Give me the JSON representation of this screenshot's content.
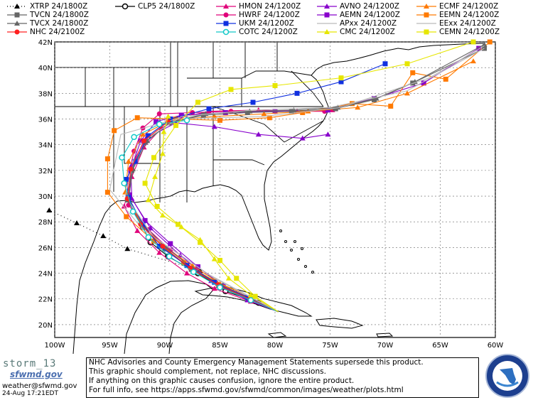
{
  "legend": [
    {
      "label": "XTRP 24/1800Z",
      "color": "#000000",
      "marker": "triangle",
      "dash": "dotted"
    },
    {
      "label": "CLP5 24/1800Z",
      "color": "#000000",
      "marker": "ring",
      "dash": "solid"
    },
    {
      "label": "HMON 24/1200Z",
      "color": "#e0007a",
      "marker": "triangle",
      "dash": "solid"
    },
    {
      "label": "AVNO 24/1200Z",
      "color": "#8800cc",
      "marker": "triangle",
      "dash": "solid"
    },
    {
      "label": "ECMF 24/1200Z",
      "color": "#ff7a00",
      "marker": "triangle",
      "dash": "solid"
    },
    {
      "label": "TVCN 24/1800Z",
      "color": "#666666",
      "marker": "square",
      "dash": "solid"
    },
    {
      "label": "HWRF 24/1200Z",
      "color": "#e0007a",
      "marker": "circle",
      "dash": "solid"
    },
    {
      "label": "AEMN 24/1200Z",
      "color": "#8800cc",
      "marker": "square",
      "dash": "solid"
    },
    {
      "label": "EEMN 24/1200Z",
      "color": "#ff7a00",
      "marker": "square",
      "dash": "solid"
    },
    {
      "label": "TVCX 24/1800Z",
      "color": "#666666",
      "marker": "triangle",
      "dash": "solid"
    },
    {
      "label": "UKM 24/1200Z",
      "color": "#1030e0",
      "marker": "square",
      "dash": "solid"
    },
    {
      "label": "APxx 24/1200Z",
      "color": "#bbbbbb",
      "marker": "none",
      "dash": "solid"
    },
    {
      "label": "EExx 24/1200Z",
      "color": "#bbbbbb",
      "marker": "none",
      "dash": "solid"
    },
    {
      "label": "NHC 24/2100Z",
      "color": "#ff2020",
      "marker": "circle",
      "dash": "solid"
    },
    {
      "label": "COTC 24/1200Z",
      "color": "#10c8c8",
      "marker": "ring",
      "dash": "solid"
    },
    {
      "label": "CMC 24/1200Z",
      "color": "#e6e600",
      "marker": "triangle",
      "dash": "solid"
    },
    {
      "label": "CEMN 24/1200Z",
      "color": "#e6e600",
      "marker": "square",
      "dash": "solid"
    }
  ],
  "map": {
    "lat_labels": [
      "42N",
      "40N",
      "38N",
      "36N",
      "34N",
      "32N",
      "30N",
      "28N",
      "26N",
      "24N",
      "22N",
      "20N"
    ],
    "lon_labels": [
      "100W",
      "95W",
      "90W",
      "85W",
      "80W",
      "75W",
      "70W",
      "65W",
      "60W"
    ],
    "lon_range": [
      -100,
      -60
    ],
    "lat_range": [
      19,
      42
    ]
  },
  "tracks": [
    {
      "model": "XTRP",
      "color": "#000000",
      "marker": "triangle",
      "dash": "dotted",
      "points": [
        [
          -79.7,
          21.0
        ],
        [
          -82.2,
          22.0
        ],
        [
          -84.7,
          23.1
        ],
        [
          -86.8,
          24.2
        ],
        [
          -93.4,
          25.9
        ],
        [
          -95.6,
          26.9
        ],
        [
          -98.0,
          27.9
        ],
        [
          -100.5,
          28.9
        ]
      ]
    },
    {
      "model": "CLP5",
      "color": "#000000",
      "marker": "ring",
      "dash": "solid",
      "points": [
        [
          -79.7,
          21.0
        ],
        [
          -81.5,
          21.7
        ],
        [
          -84.5,
          22.6
        ],
        [
          -87.0,
          24.0
        ],
        [
          -89.7,
          25.3
        ],
        [
          -91.3,
          26.4
        ],
        [
          -92.0,
          27.6
        ]
      ]
    },
    {
      "model": "HMON",
      "color": "#e0007a",
      "marker": "triangle",
      "dash": "solid",
      "points": [
        [
          -79.7,
          21.0
        ],
        [
          -82.2,
          21.8
        ],
        [
          -85.5,
          22.8
        ],
        [
          -88.0,
          24.0
        ],
        [
          -90.5,
          25.6
        ],
        [
          -92.5,
          27.3
        ],
        [
          -93.7,
          29.2
        ],
        [
          -93.0,
          31.5
        ],
        [
          -91.9,
          33.8
        ],
        [
          -90.3,
          35.3
        ],
        [
          -88.6,
          36.1
        ],
        [
          -86.0,
          36.6
        ],
        [
          -81.5,
          36.7
        ],
        [
          -78.0,
          36.6
        ],
        [
          -74.8,
          36.7
        ]
      ]
    },
    {
      "model": "HWRF",
      "color": "#e0007a",
      "marker": "circle",
      "dash": "solid",
      "points": [
        [
          -79.7,
          21.0
        ],
        [
          -82.0,
          21.9
        ],
        [
          -84.8,
          22.9
        ],
        [
          -87.3,
          24.3
        ],
        [
          -89.5,
          25.8
        ],
        [
          -91.5,
          27.4
        ],
        [
          -93.3,
          29.3
        ],
        [
          -93.4,
          31.3
        ],
        [
          -92.8,
          33.5
        ],
        [
          -92.0,
          35.3
        ],
        [
          -90.5,
          36.4
        ],
        [
          -87.5,
          36.5
        ],
        [
          -84.0,
          36.6
        ],
        [
          -80.0,
          36.6
        ],
        [
          -75.5,
          36.6
        ]
      ]
    },
    {
      "model": "AVNO",
      "color": "#8800cc",
      "marker": "triangle",
      "dash": "solid",
      "points": [
        [
          -79.7,
          21.0
        ],
        [
          -82.5,
          21.9
        ],
        [
          -85.8,
          23.4
        ],
        [
          -88.6,
          25.4
        ],
        [
          -91.3,
          27.5
        ],
        [
          -93.0,
          29.8
        ],
        [
          -93.1,
          32.3
        ],
        [
          -91.7,
          34.5
        ],
        [
          -89.0,
          35.7
        ],
        [
          -85.5,
          35.4
        ],
        [
          -81.5,
          34.8
        ],
        [
          -77.5,
          34.5
        ],
        [
          -75.2,
          34.8
        ]
      ]
    },
    {
      "model": "AEMN",
      "color": "#8800cc",
      "marker": "square",
      "dash": "solid",
      "points": [
        [
          -79.7,
          21.0
        ],
        [
          -82.0,
          22.0
        ],
        [
          -84.7,
          23.0
        ],
        [
          -87.0,
          24.5
        ],
        [
          -89.5,
          26.3
        ],
        [
          -91.8,
          28.1
        ],
        [
          -93.2,
          30.1
        ],
        [
          -93.1,
          32.0
        ],
        [
          -92.2,
          34.3
        ],
        [
          -90.8,
          35.8
        ],
        [
          -88.5,
          36.3
        ],
        [
          -84.5,
          36.5
        ],
        [
          -80.0,
          36.6
        ],
        [
          -75.2,
          36.7
        ],
        [
          -71.0,
          37.6
        ],
        [
          -66.5,
          38.8
        ],
        [
          -61.5,
          41.5
        ]
      ]
    },
    {
      "model": "ECMF",
      "color": "#ff7a00",
      "marker": "triangle",
      "dash": "solid",
      "points": [
        [
          -79.7,
          21.0
        ],
        [
          -82.3,
          22.2
        ],
        [
          -85.0,
          23.2
        ],
        [
          -87.5,
          24.6
        ],
        [
          -90.0,
          26.0
        ],
        [
          -92.2,
          28.0
        ],
        [
          -93.6,
          30.3
        ],
        [
          -93.3,
          32.7
        ],
        [
          -92.0,
          34.8
        ],
        [
          -89.5,
          35.9
        ],
        [
          -85.5,
          36.2
        ],
        [
          -81.0,
          36.4
        ],
        [
          -77.0,
          36.6
        ],
        [
          -72.5,
          36.9
        ],
        [
          -68.0,
          38.0
        ],
        [
          -62.0,
          40.5
        ]
      ]
    },
    {
      "model": "EEMN",
      "color": "#ff7a00",
      "marker": "square",
      "dash": "solid",
      "points": [
        [
          -79.7,
          21.0
        ],
        [
          -82.5,
          22.1
        ],
        [
          -85.5,
          23.4
        ],
        [
          -88.3,
          24.8
        ],
        [
          -91.0,
          26.5
        ],
        [
          -93.5,
          28.4
        ],
        [
          -95.2,
          30.3
        ],
        [
          -95.2,
          32.9
        ],
        [
          -94.6,
          35.1
        ],
        [
          -92.5,
          36.1
        ],
        [
          -89.0,
          36.0
        ],
        [
          -85.0,
          35.9
        ],
        [
          -80.5,
          36.1
        ],
        [
          -77.5,
          36.5
        ],
        [
          -73.0,
          37.2
        ],
        [
          -69.5,
          37.0
        ],
        [
          -67.5,
          39.6
        ],
        [
          -64.5,
          39.1
        ],
        [
          -60.5,
          42.0
        ]
      ]
    },
    {
      "model": "TVCN",
      "color": "#666666",
      "marker": "square",
      "dash": "solid",
      "points": [
        [
          -79.7,
          21.0
        ],
        [
          -82.2,
          21.9
        ],
        [
          -85.0,
          23.0
        ],
        [
          -87.6,
          24.3
        ],
        [
          -90.0,
          25.9
        ],
        [
          -92.0,
          27.6
        ],
        [
          -93.4,
          29.7
        ],
        [
          -93.0,
          32.0
        ],
        [
          -91.8,
          34.2
        ],
        [
          -89.6,
          35.7
        ],
        [
          -86.5,
          36.3
        ],
        [
          -82.5,
          36.5
        ],
        [
          -78.5,
          36.6
        ],
        [
          -74.5,
          36.8
        ],
        [
          -71.0,
          37.5
        ],
        [
          -67.5,
          38.8
        ],
        [
          -61.0,
          41.5
        ]
      ]
    },
    {
      "model": "TVCX",
      "color": "#666666",
      "marker": "triangle",
      "dash": "solid",
      "points": [
        [
          -79.7,
          21.0
        ],
        [
          -82.0,
          22.0
        ],
        [
          -84.8,
          23.0
        ],
        [
          -87.5,
          24.4
        ],
        [
          -89.9,
          26.0
        ],
        [
          -91.9,
          27.7
        ],
        [
          -93.3,
          29.8
        ],
        [
          -92.9,
          32.1
        ],
        [
          -91.6,
          34.3
        ],
        [
          -89.4,
          35.8
        ],
        [
          -86.3,
          36.4
        ],
        [
          -82.3,
          36.6
        ],
        [
          -78.3,
          36.7
        ],
        [
          -74.3,
          36.9
        ],
        [
          -70.8,
          37.6
        ],
        [
          -67.3,
          38.9
        ],
        [
          -61.0,
          41.8
        ]
      ]
    },
    {
      "model": "UKM",
      "color": "#1030e0",
      "marker": "square",
      "dash": "solid",
      "points": [
        [
          -79.7,
          21.0
        ],
        [
          -82.5,
          22.1
        ],
        [
          -85.5,
          23.3
        ],
        [
          -88.0,
          24.6
        ],
        [
          -90.5,
          26.1
        ],
        [
          -92.0,
          27.8
        ],
        [
          -93.3,
          29.9
        ],
        [
          -93.5,
          31.3
        ],
        [
          -92.7,
          32.7
        ],
        [
          -91.5,
          34.7
        ],
        [
          -89.5,
          36.0
        ],
        [
          -86.0,
          36.8
        ],
        [
          -82.0,
          37.3
        ],
        [
          -78.0,
          38.0
        ],
        [
          -74.0,
          38.9
        ],
        [
          -70.0,
          40.3
        ]
      ]
    },
    {
      "model": "APxx",
      "color": "#bbbbbb",
      "marker": "none",
      "dash": "solid",
      "points": [
        [
          -79.7,
          21.0
        ],
        [
          -85.5,
          23.6
        ],
        [
          -91.0,
          26.8
        ],
        [
          -93.6,
          30.0
        ],
        [
          -92.5,
          34.0
        ],
        [
          -88.5,
          36.2
        ],
        [
          -82.0,
          36.7
        ],
        [
          -75.0,
          36.9
        ],
        [
          -68.0,
          38.2
        ],
        [
          -61.0,
          41.5
        ]
      ]
    },
    {
      "model": "EExx",
      "color": "#bbbbbb",
      "marker": "none",
      "dash": "solid",
      "points": [
        [
          -79.7,
          21.0
        ],
        [
          -86.0,
          23.9
        ],
        [
          -92.0,
          27.4
        ],
        [
          -95.0,
          30.5
        ],
        [
          -94.0,
          34.8
        ],
        [
          -89.0,
          36.0
        ],
        [
          -81.0,
          36.2
        ],
        [
          -74.0,
          36.9
        ],
        [
          -66.0,
          39.2
        ],
        [
          -61.0,
          41.7
        ]
      ]
    },
    {
      "model": "NHC",
      "color": "#ff2020",
      "marker": "circle",
      "dash": "solid",
      "points": [
        [
          -79.7,
          21.0
        ],
        [
          -82.3,
          22.0
        ],
        [
          -85.2,
          23.1
        ],
        [
          -87.7,
          24.4
        ],
        [
          -90.2,
          26.1
        ],
        [
          -92.2,
          27.8
        ],
        [
          -93.4,
          29.8
        ],
        [
          -93.1,
          32.1
        ],
        [
          -91.9,
          34.3
        ],
        [
          -89.7,
          35.8
        ]
      ]
    },
    {
      "model": "COTC",
      "color": "#10c8c8",
      "marker": "ring",
      "dash": "solid",
      "points": [
        [
          -79.7,
          21.0
        ],
        [
          -82.2,
          21.9
        ],
        [
          -85.0,
          22.9
        ],
        [
          -87.4,
          24.1
        ],
        [
          -89.6,
          25.3
        ],
        [
          -91.5,
          26.8
        ],
        [
          -92.9,
          28.8
        ],
        [
          -93.7,
          31.0
        ],
        [
          -93.9,
          33.0
        ],
        [
          -92.8,
          34.6
        ],
        [
          -90.5,
          35.6
        ],
        [
          -88.0,
          35.9
        ]
      ]
    },
    {
      "model": "CMC",
      "color": "#e6e600",
      "marker": "triangle",
      "dash": "solid",
      "points": [
        [
          -79.7,
          21.0
        ],
        [
          -82.2,
          22.3
        ],
        [
          -84.2,
          23.6
        ],
        [
          -85.5,
          25.1
        ],
        [
          -86.8,
          26.6
        ],
        [
          -88.5,
          27.6
        ],
        [
          -90.2,
          28.5
        ],
        [
          -91.5,
          29.7
        ],
        [
          -90.9,
          31.5
        ],
        [
          -90.2,
          33.3
        ],
        [
          -90.1,
          35.0
        ],
        [
          -89.7,
          36.2
        ]
      ]
    },
    {
      "model": "CEMN",
      "color": "#e6e600",
      "marker": "square",
      "dash": "solid",
      "points": [
        [
          -79.7,
          21.0
        ],
        [
          -81.8,
          22.2
        ],
        [
          -83.5,
          23.6
        ],
        [
          -85.0,
          25.0
        ],
        [
          -86.8,
          26.4
        ],
        [
          -88.8,
          27.8
        ],
        [
          -90.7,
          29.2
        ],
        [
          -91.8,
          31.0
        ],
        [
          -91.0,
          33.0
        ],
        [
          -89.0,
          35.5
        ],
        [
          -87.0,
          37.3
        ],
        [
          -84.0,
          38.3
        ],
        [
          -80.0,
          38.6
        ],
        [
          -74.0,
          39.2
        ],
        [
          -68.0,
          40.3
        ],
        [
          -62.0,
          42.0
        ]
      ]
    }
  ],
  "footer": {
    "logo_text": "storm_13",
    "logo_sub": "sfwmd.gov",
    "email": "weather@sfwmd.gov",
    "timestamp": "24-Aug 17:21EDT",
    "disclaimer_lines": [
      "NHC Advisories and County Emergency Management Statements supersede this product.",
      "This graphic should complement, not replace, NHC discussions.",
      "If anything on this graphic causes confusion, ignore the entire product.",
      "For full info, see  https://apps.sfwmd.gov/sfwmd/common/images/weather/plots.html"
    ],
    "seal_text": "SOUTH FLORIDA WATER MANAGEMENT DISTRICT"
  }
}
